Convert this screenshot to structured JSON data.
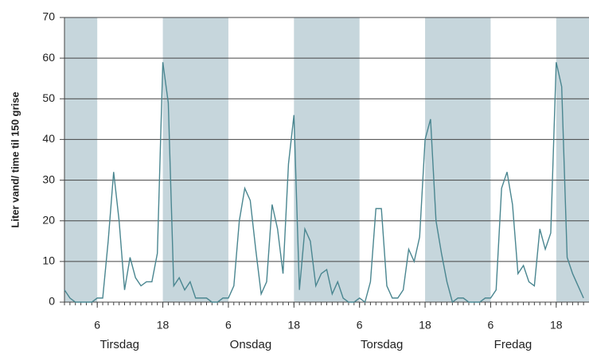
{
  "chart_data": {
    "type": "line",
    "y_label": "Liter vand/ time til 150 grise",
    "x": [
      0,
      1,
      2,
      3,
      4,
      5,
      6,
      7,
      8,
      9,
      10,
      11,
      12,
      13,
      14,
      15,
      16,
      17,
      18,
      19,
      20,
      21,
      22,
      23,
      24,
      25,
      26,
      27,
      28,
      29,
      30,
      31,
      32,
      33,
      34,
      35,
      36,
      37,
      38,
      39,
      40,
      41,
      42,
      43,
      44,
      45,
      46,
      47,
      48,
      49,
      50,
      51,
      52,
      53,
      54,
      55,
      56,
      57,
      58,
      59,
      60,
      61,
      62,
      63,
      64,
      65,
      66,
      67,
      68,
      69,
      70,
      71,
      72,
      73,
      74,
      75,
      76,
      77,
      78,
      79,
      80,
      81,
      82,
      83,
      84,
      85,
      86,
      87,
      88,
      89,
      90,
      91,
      92,
      93,
      94,
      95
    ],
    "series": [
      {
        "color": "#4a8690",
        "values": [
          3,
          1,
          0,
          0,
          0,
          0,
          1,
          1,
          15,
          32,
          20,
          3,
          11,
          6,
          4,
          5,
          5,
          12,
          59,
          49,
          4,
          6,
          3,
          5,
          1,
          1,
          1,
          0,
          0,
          1,
          1,
          4,
          20,
          28,
          25,
          13,
          2,
          5,
          24,
          18,
          7,
          34,
          46,
          3,
          18,
          15,
          4,
          7,
          8,
          2,
          5,
          1,
          0,
          0,
          1,
          0,
          5,
          23,
          23,
          4,
          1,
          1,
          3,
          13,
          10,
          16,
          40,
          45,
          20,
          12,
          5,
          0,
          1,
          1,
          0,
          0,
          0,
          1,
          1,
          3,
          28,
          32,
          24,
          7,
          9,
          5,
          4,
          18,
          13,
          17,
          59,
          53,
          11,
          7,
          4,
          1
        ]
      }
    ],
    "shaded_ranges": [
      [
        0,
        6
      ],
      [
        18,
        30
      ],
      [
        42,
        54
      ],
      [
        66,
        78
      ],
      [
        90,
        96
      ]
    ],
    "shade_color": "#c6d6dc",
    "days": [
      "Tirsdag",
      "Onsdag",
      "Torsdag",
      "Fredag"
    ],
    "xlim": [
      0,
      96
    ],
    "xticks": [
      6,
      18,
      {
        "value": 30,
        "label": "6"
      },
      {
        "value": 42,
        "label": "18"
      },
      {
        "value": 54,
        "label": "6"
      },
      {
        "value": 66,
        "label": "18"
      },
      {
        "value": 78,
        "label": "6"
      },
      {
        "value": 90,
        "label": "18"
      }
    ],
    "ylim": [
      0,
      70
    ],
    "yticks": [
      0,
      10,
      20,
      30,
      40,
      50,
      60,
      70
    ],
    "grid": true
  }
}
